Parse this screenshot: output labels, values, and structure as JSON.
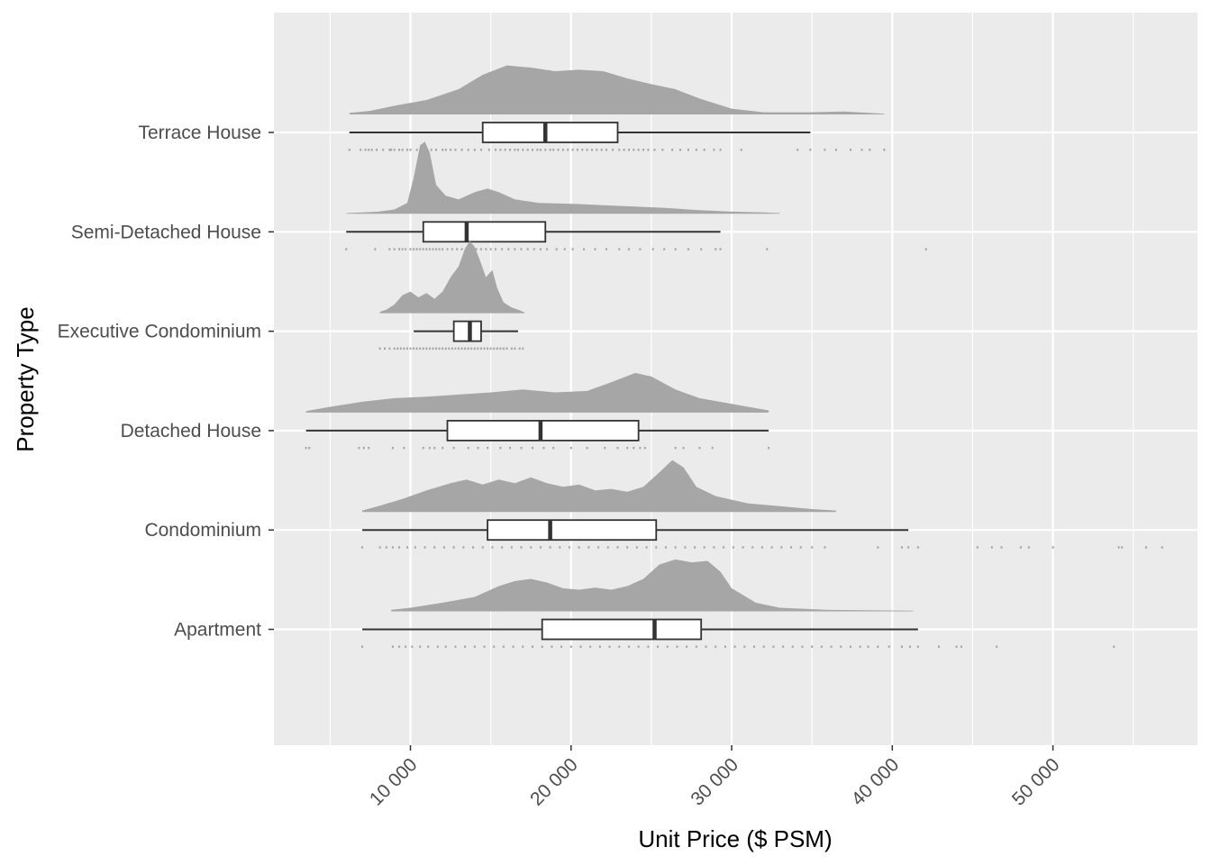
{
  "chart_data": {
    "type": "raincloud",
    "xlabel": "Unit Price ($ PSM)",
    "ylabel": "Property Type",
    "xlim": [
      1500,
      59000
    ],
    "grid": true,
    "x_ticks": [
      {
        "value": 10000,
        "label": "10 000"
      },
      {
        "value": 20000,
        "label": "20 000"
      },
      {
        "value": 30000,
        "label": "30 000"
      },
      {
        "value": 40000,
        "label": "40 000"
      },
      {
        "value": 50000,
        "label": "50 000"
      }
    ],
    "colors": {
      "panel": "#ebebeb",
      "grid": "#ffffff",
      "density": "#a6a6a6",
      "box_line": "#333333",
      "box_fill": "#ffffff"
    },
    "categories": [
      "Terrace House",
      "Semi-Detached House",
      "Executive Condominium",
      "Detached House",
      "Condominium",
      "Apartment"
    ],
    "series": [
      {
        "category": "Terrace House",
        "box": {
          "whisker_low": 6200,
          "q1": 14500,
          "median": 18400,
          "q3": 22900,
          "whisker_high": 34900
        },
        "density": [
          [
            6200,
            0.02
          ],
          [
            7500,
            0.05
          ],
          [
            9000,
            0.12
          ],
          [
            11000,
            0.2
          ],
          [
            13000,
            0.35
          ],
          [
            14500,
            0.55
          ],
          [
            16000,
            0.68
          ],
          [
            17500,
            0.65
          ],
          [
            19000,
            0.6
          ],
          [
            20500,
            0.62
          ],
          [
            22000,
            0.6
          ],
          [
            23500,
            0.5
          ],
          [
            25000,
            0.42
          ],
          [
            26500,
            0.35
          ],
          [
            28000,
            0.22
          ],
          [
            30000,
            0.08
          ],
          [
            32000,
            0.03
          ],
          [
            35000,
            0.03
          ],
          [
            37000,
            0.04
          ],
          [
            39500,
            0.01
          ]
        ],
        "points": [
          6200,
          6900,
          7200,
          7400,
          7600,
          7900,
          8300,
          8700,
          8800,
          9000,
          9300,
          9500,
          9800,
          10000,
          10400,
          10800,
          11000,
          11300,
          11600,
          12000,
          12200,
          12500,
          12800,
          13200,
          13600,
          14000,
          14400,
          14900,
          15300,
          15600,
          15900,
          16200,
          16500,
          16700,
          17000,
          17300,
          17600,
          17900,
          18100,
          18400,
          18700,
          18900,
          19200,
          19500,
          19800,
          20100,
          20400,
          20700,
          21000,
          21300,
          21600,
          21900,
          22200,
          22600,
          23000,
          23300,
          23600,
          23900,
          24200,
          24500,
          24800,
          25200,
          25700,
          26300,
          26800,
          27300,
          27800,
          28300,
          28900,
          29300,
          30600,
          34100,
          34900,
          35800,
          36500,
          37400,
          38100,
          38600,
          39500
        ]
      },
      {
        "category": "Semi-Detached House",
        "box": {
          "whisker_low": 6000,
          "q1": 10800,
          "median": 13500,
          "q3": 18400,
          "whisker_high": 29300
        },
        "density": [
          [
            6000,
            0.01
          ],
          [
            7000,
            0.02
          ],
          [
            8000,
            0.03
          ],
          [
            9000,
            0.06
          ],
          [
            9800,
            0.15
          ],
          [
            10200,
            0.5
          ],
          [
            10600,
            0.95
          ],
          [
            10900,
            1.0
          ],
          [
            11200,
            0.85
          ],
          [
            11600,
            0.4
          ],
          [
            12200,
            0.25
          ],
          [
            13000,
            0.2
          ],
          [
            14000,
            0.3
          ],
          [
            14800,
            0.35
          ],
          [
            15500,
            0.3
          ],
          [
            16500,
            0.2
          ],
          [
            18000,
            0.15
          ],
          [
            20000,
            0.14
          ],
          [
            22000,
            0.12
          ],
          [
            24000,
            0.1
          ],
          [
            26000,
            0.08
          ],
          [
            28000,
            0.05
          ],
          [
            30000,
            0.03
          ],
          [
            32000,
            0.02
          ],
          [
            33000,
            0.01
          ]
        ],
        "points": [
          6000,
          7800,
          8700,
          9000,
          9300,
          9500,
          9700,
          10000,
          10200,
          10400,
          10600,
          10800,
          11000,
          11200,
          11400,
          11600,
          11800,
          12000,
          12300,
          12600,
          12900,
          13200,
          13500,
          13800,
          14100,
          14400,
          14700,
          15000,
          15300,
          15700,
          16100,
          16500,
          16900,
          17300,
          17700,
          18100,
          18500,
          19100,
          19600,
          20100,
          20800,
          21500,
          22200,
          23000,
          23600,
          24300,
          25100,
          25800,
          26500,
          27300,
          28100,
          29000,
          29300,
          32200,
          42100
        ]
      },
      {
        "category": "Executive Condominium",
        "box": {
          "whisker_low": 10200,
          "q1": 12700,
          "median": 13700,
          "q3": 14400,
          "whisker_high": 16700
        },
        "density": [
          [
            8100,
            0.02
          ],
          [
            8500,
            0.05
          ],
          [
            9000,
            0.12
          ],
          [
            9500,
            0.25
          ],
          [
            10000,
            0.3
          ],
          [
            10500,
            0.22
          ],
          [
            11000,
            0.28
          ],
          [
            11500,
            0.2
          ],
          [
            12000,
            0.3
          ],
          [
            12500,
            0.5
          ],
          [
            13000,
            0.65
          ],
          [
            13400,
            0.9
          ],
          [
            13700,
            1.0
          ],
          [
            14000,
            0.92
          ],
          [
            14300,
            0.75
          ],
          [
            14700,
            0.5
          ],
          [
            15100,
            0.6
          ],
          [
            15400,
            0.35
          ],
          [
            15800,
            0.15
          ],
          [
            16300,
            0.08
          ],
          [
            16800,
            0.04
          ],
          [
            17100,
            0.01
          ]
        ],
        "points": [
          8100,
          8400,
          8700,
          9000,
          9200,
          9400,
          9600,
          9800,
          10000,
          10200,
          10400,
          10600,
          10800,
          11000,
          11200,
          11400,
          11600,
          11800,
          12000,
          12200,
          12400,
          12600,
          12800,
          13000,
          13200,
          13400,
          13600,
          13800,
          14000,
          14200,
          14400,
          14600,
          14800,
          15000,
          15200,
          15400,
          15600,
          15800,
          16000,
          16300,
          16500,
          16800,
          17000
        ]
      },
      {
        "category": "Detached House",
        "box": {
          "whisker_low": 3500,
          "q1": 12300,
          "median": 18100,
          "q3": 24200,
          "whisker_high": 32300
        },
        "density": [
          [
            3500,
            0.02
          ],
          [
            5000,
            0.08
          ],
          [
            7000,
            0.15
          ],
          [
            9000,
            0.2
          ],
          [
            11000,
            0.22
          ],
          [
            13000,
            0.25
          ],
          [
            15000,
            0.28
          ],
          [
            17000,
            0.32
          ],
          [
            19000,
            0.28
          ],
          [
            21000,
            0.3
          ],
          [
            22500,
            0.42
          ],
          [
            24000,
            0.55
          ],
          [
            25000,
            0.5
          ],
          [
            26500,
            0.32
          ],
          [
            28000,
            0.2
          ],
          [
            30000,
            0.12
          ],
          [
            32300,
            0.03
          ]
        ],
        "points": [
          3500,
          3700,
          6800,
          7100,
          7400,
          8900,
          9600,
          10800,
          11200,
          11500,
          12000,
          12700,
          13600,
          14200,
          14800,
          15600,
          16200,
          16900,
          17600,
          18300,
          18900,
          20000,
          21000,
          22100,
          22900,
          23500,
          23900,
          24300,
          24600,
          26500,
          27000,
          28000,
          28800,
          32300
        ]
      },
      {
        "category": "Condominium",
        "box": {
          "whisker_low": 7000,
          "q1": 14800,
          "median": 18700,
          "q3": 25300,
          "whisker_high": 41000
        },
        "density": [
          [
            7000,
            0.02
          ],
          [
            8000,
            0.08
          ],
          [
            9500,
            0.18
          ],
          [
            11000,
            0.3
          ],
          [
            12500,
            0.4
          ],
          [
            13500,
            0.45
          ],
          [
            14500,
            0.38
          ],
          [
            15500,
            0.45
          ],
          [
            16500,
            0.4
          ],
          [
            17500,
            0.48
          ],
          [
            18500,
            0.4
          ],
          [
            19500,
            0.35
          ],
          [
            20500,
            0.38
          ],
          [
            21500,
            0.3
          ],
          [
            22500,
            0.32
          ],
          [
            23500,
            0.28
          ],
          [
            24500,
            0.35
          ],
          [
            25500,
            0.55
          ],
          [
            26300,
            0.72
          ],
          [
            27000,
            0.62
          ],
          [
            27800,
            0.35
          ],
          [
            29000,
            0.22
          ],
          [
            31000,
            0.12
          ],
          [
            33000,
            0.08
          ],
          [
            35000,
            0.04
          ],
          [
            36500,
            0.02
          ]
        ],
        "points": [
          7000,
          8100,
          8500,
          8900,
          9300,
          9800,
          10300,
          10900,
          11500,
          12100,
          12700,
          13300,
          13900,
          14500,
          15100,
          15700,
          16300,
          16900,
          17500,
          18100,
          18700,
          19300,
          19900,
          20500,
          21100,
          21700,
          22300,
          22900,
          23500,
          24100,
          24700,
          25300,
          25900,
          26500,
          27100,
          27700,
          28300,
          28900,
          29500,
          30100,
          30700,
          31300,
          31900,
          32500,
          33100,
          33700,
          34300,
          35000,
          35800,
          39100,
          40600,
          41000,
          41600,
          45300,
          46200,
          46800,
          48000,
          48500,
          50000,
          54100,
          54300,
          55800,
          56800
        ]
      },
      {
        "category": "Apartment",
        "box": {
          "whisker_low": 7000,
          "q1": 18200,
          "median": 25200,
          "q3": 28100,
          "whisker_high": 41600
        },
        "density": [
          [
            8800,
            0.02
          ],
          [
            10000,
            0.05
          ],
          [
            12000,
            0.12
          ],
          [
            14000,
            0.2
          ],
          [
            15500,
            0.35
          ],
          [
            16500,
            0.42
          ],
          [
            17500,
            0.45
          ],
          [
            18500,
            0.4
          ],
          [
            19500,
            0.32
          ],
          [
            20500,
            0.3
          ],
          [
            21500,
            0.33
          ],
          [
            22500,
            0.3
          ],
          [
            23500,
            0.35
          ],
          [
            24500,
            0.45
          ],
          [
            25500,
            0.65
          ],
          [
            26500,
            0.72
          ],
          [
            27500,
            0.68
          ],
          [
            28500,
            0.7
          ],
          [
            29300,
            0.55
          ],
          [
            30000,
            0.32
          ],
          [
            31500,
            0.12
          ],
          [
            33000,
            0.05
          ],
          [
            36000,
            0.02
          ],
          [
            41300,
            0.01
          ]
        ],
        "points": [
          7000,
          8900,
          9300,
          9700,
          10100,
          10600,
          11100,
          11700,
          12200,
          12800,
          13400,
          14000,
          14600,
          15200,
          15800,
          16400,
          17000,
          17600,
          18200,
          18800,
          19400,
          20000,
          20600,
          21200,
          21800,
          22400,
          23000,
          23600,
          24200,
          24800,
          25400,
          26000,
          26600,
          27200,
          27800,
          28400,
          29000,
          29600,
          30200,
          30800,
          31400,
          32000,
          32600,
          33200,
          33800,
          34400,
          35000,
          35600,
          36200,
          36800,
          37400,
          38000,
          38500,
          39100,
          39800,
          40600,
          41100,
          41600,
          42900,
          44000,
          44300,
          46500,
          53800
        ]
      }
    ]
  }
}
